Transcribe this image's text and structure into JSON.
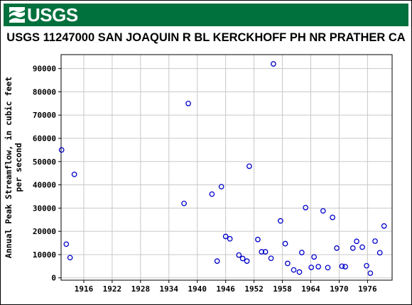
{
  "header": {
    "logo_text": "USGS",
    "brand_color": "#00703c"
  },
  "chart_data": {
    "type": "scatter",
    "title": "USGS 11247000 SAN JOAQUIN R BL KERCKHOFF PH NR PRATHER CA",
    "xlabel": "",
    "ylabel_lines": [
      "Annual Peak Streamflow, in cubic feet",
      "per second"
    ],
    "xlim": [
      1911.2,
      1981.2
    ],
    "ylim": [
      -1000,
      96000
    ],
    "xticks": [
      1916,
      1922,
      1928,
      1934,
      1940,
      1946,
      1952,
      1958,
      1964,
      1970,
      1976
    ],
    "yticks": [
      0,
      10000,
      20000,
      30000,
      40000,
      50000,
      60000,
      70000,
      80000,
      90000
    ],
    "grid": true,
    "marker": "open-circle",
    "marker_color": "#0000cc",
    "series": [
      {
        "points": [
          [
            1911.3,
            55000
          ],
          [
            1912.3,
            14500
          ],
          [
            1913.1,
            8700
          ],
          [
            1914.0,
            44500
          ],
          [
            1937.2,
            32000
          ],
          [
            1938.1,
            75000
          ],
          [
            1943.1,
            36000
          ],
          [
            1944.2,
            7200
          ],
          [
            1945.1,
            39200
          ],
          [
            1946.0,
            17800
          ],
          [
            1946.9,
            16800
          ],
          [
            1948.8,
            9800
          ],
          [
            1949.6,
            8300
          ],
          [
            1950.5,
            7200
          ],
          [
            1951.0,
            48000
          ],
          [
            1952.8,
            16500
          ],
          [
            1953.6,
            11200
          ],
          [
            1954.4,
            11200
          ],
          [
            1955.6,
            8400
          ],
          [
            1956.1,
            92000
          ],
          [
            1957.6,
            24500
          ],
          [
            1958.6,
            14700
          ],
          [
            1959.1,
            6200
          ],
          [
            1960.4,
            3400
          ],
          [
            1961.6,
            2500
          ],
          [
            1962.1,
            10900
          ],
          [
            1962.9,
            30200
          ],
          [
            1964.1,
            4500
          ],
          [
            1964.7,
            9000
          ],
          [
            1965.6,
            4800
          ],
          [
            1966.6,
            28800
          ],
          [
            1967.6,
            4400
          ],
          [
            1968.6,
            26000
          ],
          [
            1969.5,
            12800
          ],
          [
            1970.6,
            5000
          ],
          [
            1971.3,
            4800
          ],
          [
            1972.9,
            12800
          ],
          [
            1973.7,
            15700
          ],
          [
            1974.9,
            13200
          ],
          [
            1975.8,
            5200
          ],
          [
            1976.6,
            2000
          ],
          [
            1977.6,
            15800
          ],
          [
            1978.6,
            10800
          ],
          [
            1979.5,
            22300
          ]
        ]
      }
    ]
  }
}
